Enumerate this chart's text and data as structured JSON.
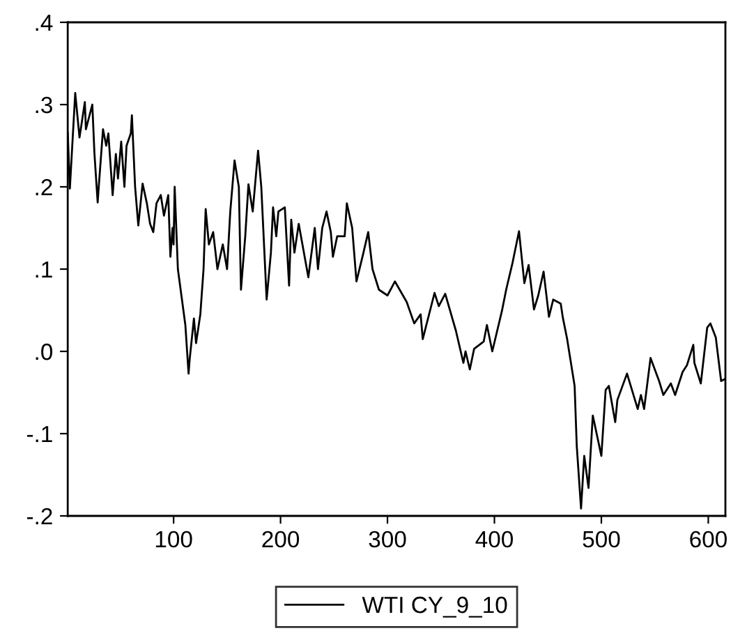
{
  "chart_data": {
    "type": "line",
    "x": [
      1,
      3,
      8,
      12,
      17,
      18,
      24,
      26,
      29,
      30,
      34,
      37,
      39,
      43,
      46,
      48,
      51,
      54,
      56,
      60,
      61,
      64,
      67,
      71,
      75,
      78,
      81,
      84,
      88,
      91,
      95,
      97,
      99,
      100,
      101,
      104,
      111,
      114,
      115,
      119,
      121,
      125,
      128,
      130,
      133,
      137,
      141,
      146,
      150,
      153,
      157,
      161,
      163,
      167,
      170,
      174,
      179,
      182,
      187,
      191,
      193,
      196,
      198,
      204,
      208,
      210,
      213,
      217,
      226,
      232,
      235,
      239,
      243,
      247,
      249,
      253,
      260,
      262,
      267,
      271,
      277,
      282,
      286,
      292,
      300,
      307,
      318,
      325,
      331,
      333,
      344,
      348,
      354,
      364,
      371,
      373,
      377,
      381,
      390,
      393,
      398,
      407,
      411,
      417,
      423,
      428,
      432,
      437,
      441,
      446,
      451,
      455,
      462,
      464,
      468,
      475,
      477,
      481,
      484,
      488,
      492,
      500,
      504,
      507,
      513,
      515,
      524,
      534,
      537,
      540,
      546,
      554,
      558,
      565,
      569,
      576,
      580,
      586,
      587,
      593,
      599,
      602,
      607,
      612,
      615
    ],
    "series": [
      {
        "name": "WTI CY_9_10",
        "color": "#000000",
        "values": [
          0.266,
          0.198,
          0.314,
          0.26,
          0.303,
          0.27,
          0.3,
          0.24,
          0.181,
          0.2,
          0.27,
          0.25,
          0.265,
          0.19,
          0.24,
          0.21,
          0.255,
          0.2,
          0.25,
          0.265,
          0.287,
          0.2,
          0.153,
          0.204,
          0.18,
          0.155,
          0.145,
          0.18,
          0.19,
          0.165,
          0.19,
          0.115,
          0.15,
          0.13,
          0.2,
          0.1,
          0.032,
          -0.027,
          -0.01,
          0.04,
          0.01,
          0.045,
          0.1,
          0.173,
          0.13,
          0.145,
          0.1,
          0.13,
          0.1,
          0.17,
          0.232,
          0.2,
          0.075,
          0.14,
          0.203,
          0.17,
          0.244,
          0.2,
          0.063,
          0.12,
          0.175,
          0.14,
          0.17,
          0.175,
          0.08,
          0.16,
          0.12,
          0.155,
          0.09,
          0.15,
          0.1,
          0.15,
          0.17,
          0.145,
          0.115,
          0.14,
          0.14,
          0.18,
          0.15,
          0.085,
          0.117,
          0.145,
          0.1,
          0.075,
          0.068,
          0.085,
          0.06,
          0.034,
          0.045,
          0.015,
          0.071,
          0.055,
          0.07,
          0.025,
          -0.014,
          0.0,
          -0.022,
          0.003,
          0.012,
          0.032,
          0.0,
          0.049,
          0.075,
          0.108,
          0.146,
          0.083,
          0.105,
          0.051,
          0.068,
          0.097,
          0.042,
          0.063,
          0.058,
          0.041,
          0.015,
          -0.042,
          -0.115,
          -0.191,
          -0.127,
          -0.166,
          -0.078,
          -0.127,
          -0.047,
          -0.042,
          -0.086,
          -0.059,
          -0.027,
          -0.07,
          -0.053,
          -0.07,
          -0.008,
          -0.036,
          -0.053,
          -0.039,
          -0.053,
          -0.025,
          -0.017,
          0.008,
          -0.014,
          -0.039,
          0.029,
          0.034,
          0.017,
          -0.036,
          -0.034
        ]
      }
    ],
    "xlim": [
      1,
      616
    ],
    "xticks": [
      100,
      200,
      300,
      400,
      500,
      600
    ],
    "ylim": [
      -0.2,
      0.4
    ],
    "yticks": [
      {
        "value": -0.2,
        "label": "-.2"
      },
      {
        "value": -0.1,
        "label": "-.1"
      },
      {
        "value": 0.0,
        "label": ".0"
      },
      {
        "value": 0.1,
        "label": ".1"
      },
      {
        "value": 0.2,
        "label": ".2"
      },
      {
        "value": 0.3,
        "label": ".3"
      },
      {
        "value": 0.4,
        "label": ".4"
      }
    ],
    "grid": false,
    "legend": "bottom",
    "line_style": "solid",
    "marker": "none"
  }
}
